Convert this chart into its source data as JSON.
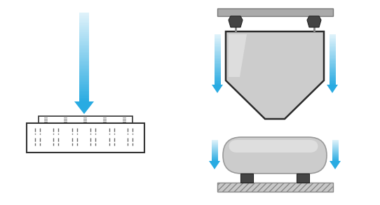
{
  "bg_color": "#ffffff",
  "arrow_color": "#29ABE2",
  "bolt_color": "#444444",
  "beam_color": "#aaaaaa",
  "hopper_edge": "#2a2a2a",
  "hopper_fill": "#cccccc",
  "tank_fill": "#cccccc",
  "tank_edge": "#999999",
  "floor_color": "#bbbbbb",
  "ring_cell_edge": "#333333"
}
